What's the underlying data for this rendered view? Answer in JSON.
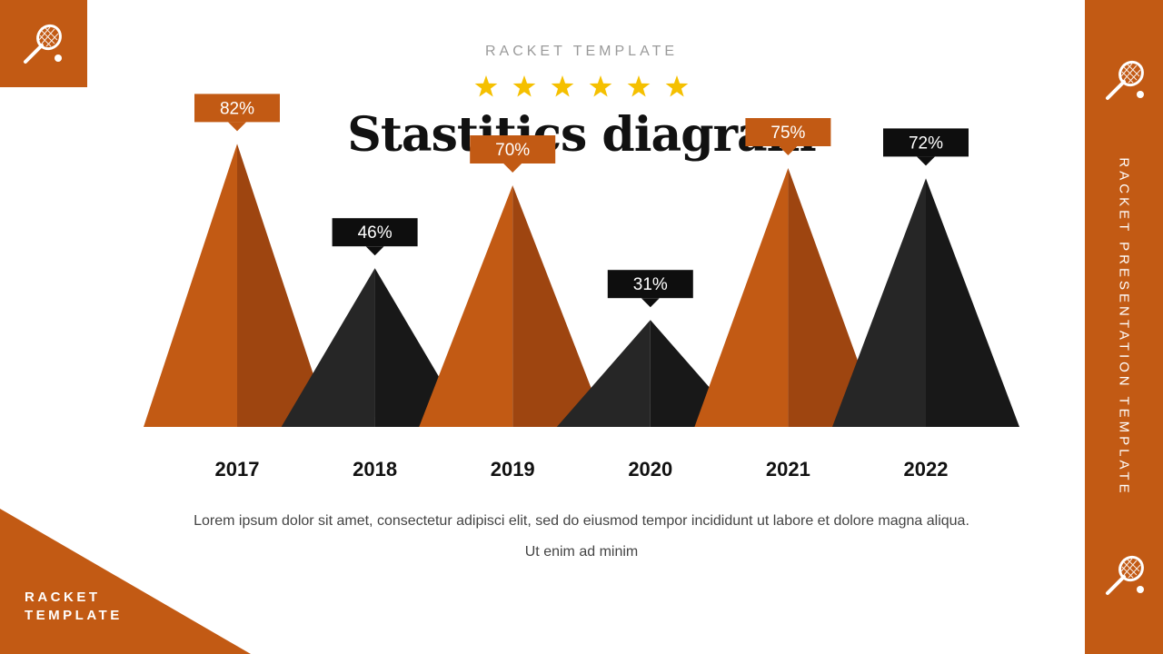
{
  "header": {
    "kicker": "RACKET TEMPLATE",
    "title": "Stastitics diagram",
    "stars": 6
  },
  "side": {
    "text": "RACKET PRESENTATION TEMPLATE"
  },
  "corner": {
    "line1": "RACKET",
    "line2": "TEMPLATE"
  },
  "description": {
    "line1": "Lorem ipsum dolor sit amet, consectetur adipisci elit, sed do eiusmod tempor incididunt ut labore et dolore magna aliqua.",
    "line2": "Ut enim ad minim"
  },
  "colors": {
    "orange": "#c25a14",
    "orange_dark": "#9e4510",
    "black": "#262626",
    "black_dark": "#181818",
    "star": "#f5c000"
  },
  "chart_data": {
    "type": "bar",
    "categories": [
      "2017",
      "2018",
      "2019",
      "2020",
      "2021",
      "2022"
    ],
    "values": [
      82,
      46,
      70,
      31,
      75,
      72
    ],
    "value_labels": [
      "82%",
      "46%",
      "70%",
      "31%",
      "75%",
      "72%"
    ],
    "ylim": [
      0,
      100
    ],
    "legend": "none",
    "grid": false
  }
}
